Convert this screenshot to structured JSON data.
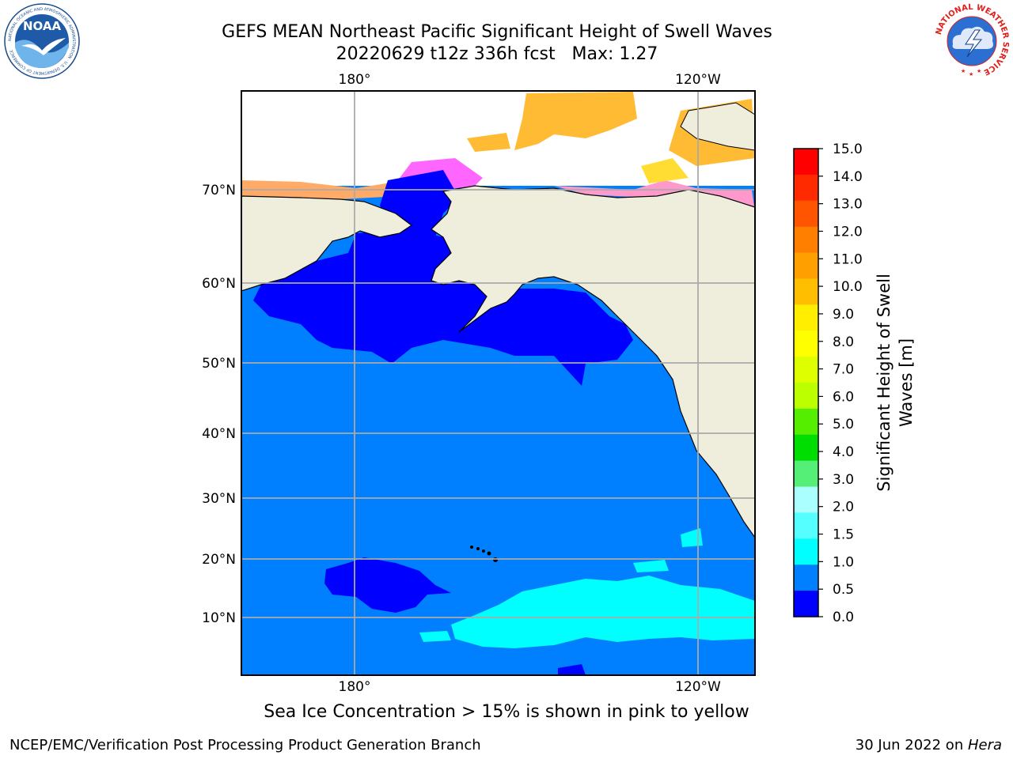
{
  "title": {
    "line1": "GEFS MEAN Northeast Pacific Significant Height of Swell Waves",
    "line2": "20220629 t12z 336h fcst   Max: 1.27"
  },
  "map": {
    "lon_labels_top": [
      "180°",
      "120°W"
    ],
    "lon_labels_bottom": [
      "180°",
      "120°W"
    ],
    "lat_labels": [
      "70°N",
      "60°N",
      "50°N",
      "40°N",
      "30°N",
      "20°N",
      "10°N"
    ],
    "colors": {
      "ocean_swell_0_5_1_0": "#0080ff",
      "swell_0_0_5": "#0000ff",
      "swell_1_0_1_5": "#00ffff",
      "land": "#efeedd",
      "ice_pink": "#ff66ff",
      "ice_orange": "#ffbb33",
      "ice_yellow": "#ffdd33",
      "grid": "#aaaaaa"
    }
  },
  "colorbar": {
    "label_line1": "Significant Height of Swell",
    "label_line2": "Waves [m]",
    "ticks": [
      "15.0",
      "14.0",
      "13.0",
      "12.0",
      "11.0",
      "10.0",
      "9.0",
      "8.0",
      "7.0",
      "6.0",
      "5.0",
      "4.0",
      "3.0",
      "2.0",
      "1.5",
      "1.0",
      "0.5",
      "0.0"
    ],
    "colors_top_to_bottom": [
      "#ff0000",
      "#ff2a00",
      "#ff5500",
      "#ff7f00",
      "#ff9f00",
      "#ffbf00",
      "#ffee00",
      "#ffff00",
      "#ddff00",
      "#bbff00",
      "#55ee00",
      "#00dd00",
      "#55ee77",
      "#aaffff",
      "#55ffff",
      "#00ffff",
      "#0080ff",
      "#0000ff"
    ]
  },
  "logos": {
    "noaa_text": "NOAA",
    "noaa_ring": "NATIONAL OCEANIC AND ATMOSPHERIC ADMINISTRATION · U.S. DEPARTMENT OF COMMERCE",
    "nws_ring": "NATIONAL WEATHER SERVICE"
  },
  "footer": {
    "note": "Sea Ice Concentration > 15% is shown in pink to yellow",
    "left": "NCEP/EMC/Verification Post Processing Product Generation Branch",
    "right_prefix": "30 Jun 2022 on ",
    "right_machine": "Hera"
  }
}
